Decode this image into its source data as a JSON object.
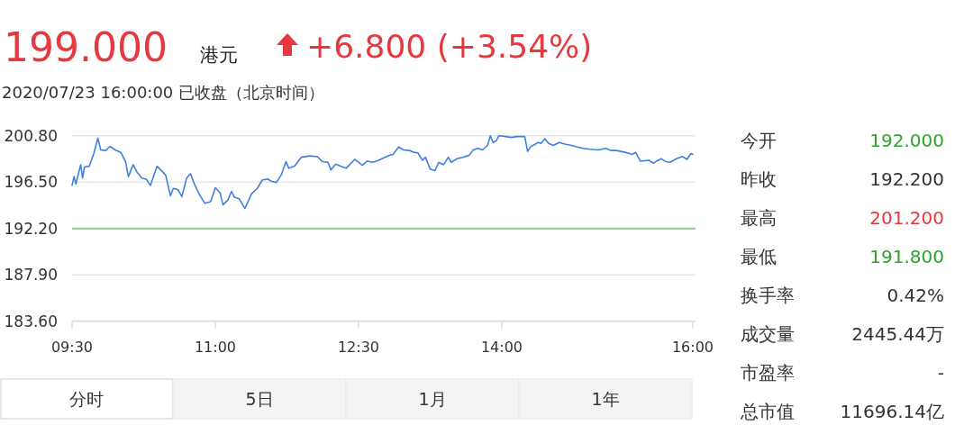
{
  "chart_data": [
    {
      "type": "line",
      "title": "199.000",
      "annotations": [
        "港元",
        "+6.800 (+3.54%)",
        "2020/07/23 16:00:00  已收盘（北京时间）",
        "分时",
        "5日",
        "1月",
        "1年"
      ],
      "xlim": [
        9.5,
        16
      ],
      "xticks": [
        {
          "value": 9.5,
          "label": "09:30"
        },
        {
          "value": 11,
          "label": "11:00"
        },
        {
          "value": 12.5,
          "label": "12:30"
        },
        {
          "value": 14,
          "label": "14:00"
        },
        {
          "value": 16,
          "label": "16:00"
        }
      ],
      "ylim": [
        183.6,
        200.8
      ],
      "yticks": [
        {
          "value": 183.6,
          "label": "183.60"
        },
        {
          "value": 187.9,
          "label": "187.90"
        },
        {
          "value": 192.2,
          "label": "192.20"
        },
        {
          "value": 196.5,
          "label": "196.50"
        },
        {
          "value": 200.8,
          "label": "200.80"
        }
      ],
      "grid": "y",
      "marker": "none",
      "line_style": "solid",
      "ref_lines": [
        {
          "axis": "y",
          "value": 192.2,
          "color": "#8ccf8c"
        }
      ],
      "series": [
        {
          "color": "#3f7fe0",
          "x": [
            9.5,
            9.52,
            9.54,
            9.59,
            9.61,
            9.63,
            9.68,
            9.73,
            9.77,
            9.8,
            9.85,
            9.9,
            9.95,
            10.01,
            10.06,
            10.09,
            10.14,
            10.18,
            10.23,
            10.28,
            10.32,
            10.39,
            10.45,
            10.48,
            10.53,
            10.56,
            10.61,
            10.65,
            10.7,
            10.74,
            10.78,
            10.84,
            10.89,
            10.95,
            11.0,
            11.05,
            11.08,
            11.13,
            11.17,
            11.2,
            11.25,
            11.31,
            11.38,
            11.44,
            11.49,
            11.55,
            11.58,
            11.64,
            11.69,
            11.74,
            11.77,
            11.83,
            11.9,
            11.99,
            12.07,
            12.12,
            12.18,
            12.21,
            12.26,
            12.31,
            12.37,
            12.46,
            12.54,
            12.59,
            12.65,
            12.71,
            12.81,
            12.86,
            12.92,
            12.97,
            13.03,
            13.08,
            13.12,
            13.17,
            13.2,
            13.25,
            13.3,
            13.34,
            13.39,
            13.44,
            13.47,
            13.53,
            13.59,
            13.66,
            13.7,
            13.75,
            13.8,
            13.85,
            13.88,
            13.91,
            13.94,
            13.97,
            14.04,
            14.1,
            14.16,
            14.24,
            14.27,
            14.3,
            14.38,
            14.41,
            14.45,
            14.49,
            14.54,
            14.6,
            14.66,
            14.73,
            14.79,
            14.85,
            14.92,
            15.01,
            15.09,
            15.14,
            15.2,
            15.29,
            15.37,
            15.4,
            15.45,
            15.54,
            15.59,
            15.62,
            15.67,
            15.72,
            15.76,
            15.83,
            15.89,
            15.94,
            15.98,
            16.0
          ],
          "values": [
            196.19,
            197.01,
            196.33,
            198.11,
            196.88,
            197.89,
            197.97,
            199.21,
            200.58,
            199.48,
            199.43,
            199.81,
            199.48,
            199.26,
            198.39,
            197.01,
            198.11,
            197.42,
            196.88,
            196.74,
            196.19,
            197.97,
            197.42,
            197.15,
            195.23,
            195.91,
            195.78,
            195.15,
            196.88,
            197.29,
            196.33,
            195.23,
            194.54,
            194.68,
            195.97,
            195.5,
            194.4,
            194.81,
            195.64,
            195.09,
            194.95,
            194.05,
            195.42,
            195.91,
            196.68,
            196.79,
            196.6,
            196.46,
            197.15,
            198.39,
            197.78,
            197.97,
            198.8,
            198.93,
            198.85,
            198.39,
            198.33,
            197.62,
            198.17,
            197.97,
            197.78,
            198.61,
            198.06,
            198.44,
            198.33,
            198.52,
            198.93,
            199.07,
            199.76,
            199.48,
            199.43,
            199.26,
            199.21,
            198.52,
            198.8,
            197.7,
            197.56,
            198.33,
            198.11,
            198.8,
            198.33,
            198.66,
            198.8,
            198.99,
            199.48,
            199.62,
            199.48,
            199.9,
            200.8,
            200.17,
            200.31,
            200.8,
            200.72,
            200.64,
            200.72,
            200.72,
            199.35,
            199.76,
            200.17,
            200.09,
            200.53,
            200.09,
            199.9,
            200.17,
            200.03,
            199.9,
            199.76,
            199.62,
            199.54,
            199.48,
            199.62,
            199.43,
            199.43,
            199.26,
            199.07,
            199.26,
            198.44,
            198.52,
            198.25,
            198.44,
            198.66,
            198.39,
            198.33,
            198.66,
            198.88,
            198.6,
            199.15,
            199.07
          ]
        }
      ]
    },
    {
      "type": "other",
      "categories": [
        "今开",
        "昨收",
        "最高",
        "最低",
        "换手率",
        "成交量",
        "市盈率",
        "总市值"
      ],
      "value_labels": [
        "192.000",
        "192.200",
        "201.200",
        "191.800",
        "0.42%",
        "2445.44万",
        "-",
        "11696.14亿"
      ],
      "colors": [
        "#2aa52a",
        "#333333",
        "#e5393f",
        "#2aa52a",
        "#333333",
        "#333333",
        "#333333",
        "#333333"
      ]
    }
  ]
}
